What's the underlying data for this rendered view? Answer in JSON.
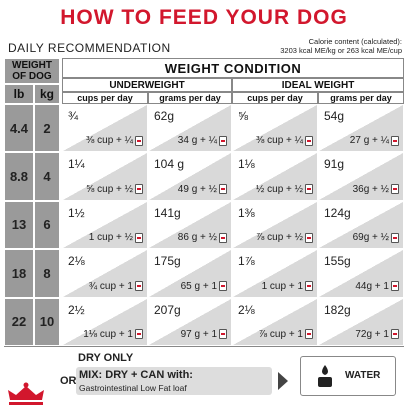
{
  "header": {
    "title": "HOW TO FEED YOUR DOG",
    "subtitle": "DAILY RECOMMENDATION",
    "calorie_note": [
      "Calorie content (calculated):",
      "3203 kcal ME/kg or 263 kcal ME/cup"
    ]
  },
  "table": {
    "weight_header": "WEIGHT OF DOG",
    "unit_headers": [
      "lb",
      "kg"
    ],
    "condition_header": "WEIGHT CONDITION",
    "groups": [
      "UNDERWEIGHT",
      "IDEAL WEIGHT"
    ],
    "subheaders": [
      "cups per day",
      "grams per day",
      "cups per day",
      "grams per day"
    ],
    "rows": [
      {
        "lb": "4.4",
        "kg": "2",
        "cells": [
          {
            "dry": "¾",
            "mix": "⅜ cup + ¼"
          },
          {
            "dry": "62g",
            "mix": "34 g + ¼"
          },
          {
            "dry": "⅝",
            "mix": "⅜ cup + ¼"
          },
          {
            "dry": "54g",
            "mix": "27 g + ¼"
          }
        ]
      },
      {
        "lb": "8.8",
        "kg": "4",
        "cells": [
          {
            "dry": "1¼",
            "mix": "⅝ cup + ½"
          },
          {
            "dry": "104 g",
            "mix": "49 g + ½"
          },
          {
            "dry": "1⅛",
            "mix": "½ cup + ½"
          },
          {
            "dry": "91g",
            "mix": "36g + ½"
          }
        ]
      },
      {
        "lb": "13",
        "kg": "6",
        "cells": [
          {
            "dry": "1½",
            "mix": "1 cup + ½"
          },
          {
            "dry": "141g",
            "mix": "86 g + ½"
          },
          {
            "dry": "1⅜",
            "mix": "⅞ cup + ½"
          },
          {
            "dry": "124g",
            "mix": "69g + ½"
          }
        ]
      },
      {
        "lb": "18",
        "kg": "8",
        "cells": [
          {
            "dry": "2⅛",
            "mix": "¾ cup + 1"
          },
          {
            "dry": "175g",
            "mix": "65 g + 1"
          },
          {
            "dry": "1⅞",
            "mix": "1 cup + 1"
          },
          {
            "dry": "155g",
            "mix": "44g + 1"
          }
        ]
      },
      {
        "lb": "22",
        "kg": "10",
        "cells": [
          {
            "dry": "2½",
            "mix": "1⅛ cup + 1"
          },
          {
            "dry": "207g",
            "mix": "97 g + 1"
          },
          {
            "dry": "2⅛",
            "mix": "⅞ cup + 1"
          },
          {
            "dry": "182g",
            "mix": "72g + 1"
          }
        ]
      }
    ]
  },
  "footer": {
    "or": "OR",
    "dry_only": "DRY ONLY",
    "mix": "MIX: DRY + CAN with:",
    "product": "Gastrointestinal Low Fat loaf",
    "water": "WATER"
  }
}
